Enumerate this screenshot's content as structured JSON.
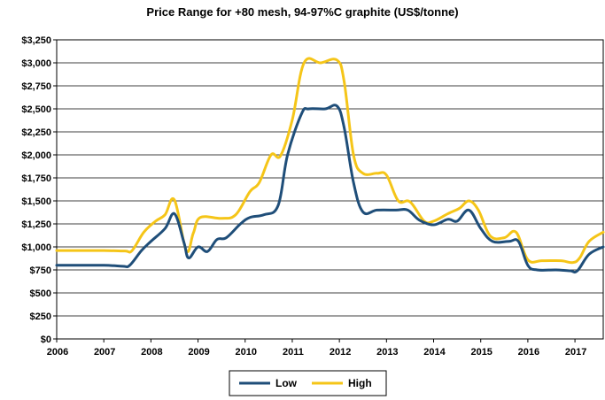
{
  "chart_data": {
    "type": "line",
    "title": "Price Range for +80 mesh, 94-97%C graphite (US$/tonne)",
    "xlabel": "",
    "ylabel": "",
    "ylim": [
      0,
      3250
    ],
    "yticks": [
      "$0",
      "$250",
      "$500",
      "$750",
      "$1,000",
      "$1,250",
      "$1,500",
      "$1,750",
      "$2,000",
      "$2,250",
      "$2,500",
      "$2,750",
      "$3,000",
      "$3,250"
    ],
    "xlim": [
      2006,
      2017.6
    ],
    "xticks": [
      "2006",
      "2007",
      "2008",
      "2009",
      "2010",
      "2011",
      "2012",
      "2013",
      "2014",
      "2015",
      "2016",
      "2017"
    ],
    "grid": true,
    "legend": "bottom",
    "series": [
      {
        "name": "Low",
        "color": "#1f4e79",
        "points": [
          [
            2006.0,
            800
          ],
          [
            2007.0,
            800
          ],
          [
            2007.4,
            790
          ],
          [
            2007.55,
            800
          ],
          [
            2007.8,
            960
          ],
          [
            2008.0,
            1060
          ],
          [
            2008.3,
            1200
          ],
          [
            2008.5,
            1360
          ],
          [
            2008.7,
            1050
          ],
          [
            2008.8,
            880
          ],
          [
            2009.0,
            1000
          ],
          [
            2009.2,
            950
          ],
          [
            2009.4,
            1080
          ],
          [
            2009.6,
            1100
          ],
          [
            2009.9,
            1250
          ],
          [
            2010.1,
            1320
          ],
          [
            2010.4,
            1350
          ],
          [
            2010.7,
            1450
          ],
          [
            2010.9,
            2000
          ],
          [
            2011.2,
            2450
          ],
          [
            2011.35,
            2500
          ],
          [
            2011.7,
            2500
          ],
          [
            2011.95,
            2530
          ],
          [
            2012.1,
            2300
          ],
          [
            2012.3,
            1700
          ],
          [
            2012.5,
            1380
          ],
          [
            2012.8,
            1400
          ],
          [
            2013.2,
            1400
          ],
          [
            2013.45,
            1400
          ],
          [
            2013.7,
            1290
          ],
          [
            2014.0,
            1240
          ],
          [
            2014.3,
            1300
          ],
          [
            2014.5,
            1280
          ],
          [
            2014.75,
            1400
          ],
          [
            2015.0,
            1200
          ],
          [
            2015.25,
            1060
          ],
          [
            2015.6,
            1060
          ],
          [
            2015.8,
            1060
          ],
          [
            2016.0,
            800
          ],
          [
            2016.2,
            750
          ],
          [
            2016.6,
            750
          ],
          [
            2016.9,
            740
          ],
          [
            2017.05,
            740
          ],
          [
            2017.3,
            920
          ],
          [
            2017.6,
            1000
          ]
        ]
      },
      {
        "name": "High",
        "color": "#f5c518",
        "points": [
          [
            2006.0,
            960
          ],
          [
            2007.0,
            960
          ],
          [
            2007.45,
            955
          ],
          [
            2007.6,
            960
          ],
          [
            2007.85,
            1160
          ],
          [
            2008.1,
            1280
          ],
          [
            2008.3,
            1350
          ],
          [
            2008.5,
            1510
          ],
          [
            2008.75,
            960
          ],
          [
            2008.9,
            1150
          ],
          [
            2009.05,
            1320
          ],
          [
            2009.5,
            1310
          ],
          [
            2009.8,
            1350
          ],
          [
            2010.1,
            1600
          ],
          [
            2010.3,
            1700
          ],
          [
            2010.55,
            2000
          ],
          [
            2010.75,
            1990
          ],
          [
            2011.0,
            2380
          ],
          [
            2011.25,
            3000
          ],
          [
            2011.6,
            3000
          ],
          [
            2011.95,
            3030
          ],
          [
            2012.1,
            2800
          ],
          [
            2012.3,
            2000
          ],
          [
            2012.5,
            1800
          ],
          [
            2012.8,
            1800
          ],
          [
            2013.0,
            1780
          ],
          [
            2013.25,
            1500
          ],
          [
            2013.5,
            1490
          ],
          [
            2013.8,
            1280
          ],
          [
            2014.0,
            1280
          ],
          [
            2014.3,
            1360
          ],
          [
            2014.55,
            1420
          ],
          [
            2014.75,
            1500
          ],
          [
            2014.95,
            1400
          ],
          [
            2015.2,
            1120
          ],
          [
            2015.5,
            1100
          ],
          [
            2015.75,
            1160
          ],
          [
            2016.0,
            860
          ],
          [
            2016.3,
            850
          ],
          [
            2016.7,
            850
          ],
          [
            2016.95,
            830
          ],
          [
            2017.1,
            880
          ],
          [
            2017.3,
            1060
          ],
          [
            2017.6,
            1160
          ]
        ]
      }
    ]
  }
}
